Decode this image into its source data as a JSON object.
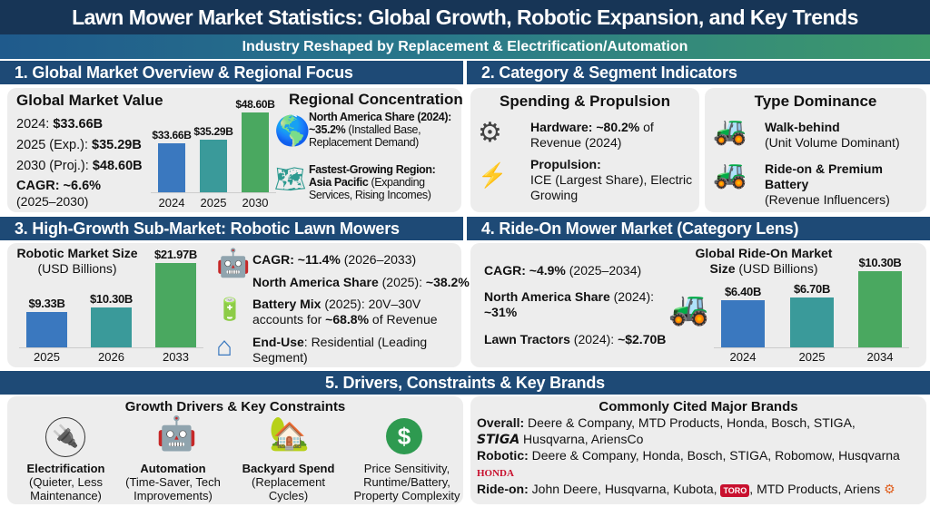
{
  "title": "Lawn Mower Market Statistics: Global Growth, Robotic Expansion, and Key Trends",
  "subtitle": "Industry Reshaped by Replacement & Electrification/Automation",
  "s1": {
    "header": "1. Global Market Overview & Regional Focus",
    "gmv_title": "Global Market Value",
    "rows": [
      {
        "label": "2024: ",
        "value": "$33.66B"
      },
      {
        "label": "2025 (Exp.): ",
        "value": "$35.29B"
      },
      {
        "label": "2030 (Proj.): ",
        "value": "$48.60B"
      }
    ],
    "cagr": "CAGR: ~6.6%",
    "cagr_period": "(2025–2030)",
    "regional_title": "Regional Concentration",
    "na_bold": "North America Share (2024):",
    "na_bold2": "~35.2%",
    "na_rest": " (Installed Base, Replacement Demand)",
    "ap_bold": "Fastest-Growing Region:",
    "ap_bold2": "Asia Pacific",
    "ap_rest": " (Expanding Services, Rising Incomes)"
  },
  "s2": {
    "header": "2. Category & Segment Indicators",
    "sp_title": "Spending & Propulsion",
    "hw_bold": "Hardware: ~80.2%",
    "hw_rest": " of Revenue (2024)",
    "prop_bold": "Propulsion:",
    "prop_rest": "ICE (Largest Share), Electric Growing",
    "td_title": "Type Dominance",
    "wb_bold": "Walk-behind",
    "wb_rest": "(Unit Volume Dominant)",
    "ro_bold": "Ride-on & Premium Battery",
    "ro_rest": "(Revenue Influencers)"
  },
  "s3": {
    "header": "3. High-Growth Sub-Market: Robotic Lawn Mowers",
    "chart_title": "Robotic Market Size",
    "chart_sub": "(USD Billions)",
    "cagr_bold": "CAGR: ~11.4%",
    "cagr_rest": " (2026–2033)",
    "na_bold": "North America Share",
    "na_rest": " (2025): ",
    "na_val": "~38.2%",
    "bat_bold": "Battery Mix",
    "bat_rest": " (2025): 20V–30V accounts for ",
    "bat_val": "~68.8%",
    "bat_end": " of Revenue",
    "eu_bold": "End-Use",
    "eu_rest": ": Residential (Leading Segment)"
  },
  "s4": {
    "header": "4. Ride-On Mower Market (Category Lens)",
    "cagr_bold": "CAGR: ~4.9%",
    "cagr_rest": " (2025–2034)",
    "na_bold": "North America Share",
    "na_rest": " (2024):",
    "na_val": "~31%",
    "lt_bold": "Lawn Tractors",
    "lt_rest": " (2024): ",
    "lt_val": "~$2.70B",
    "chart_title": "Global Ride-On Market",
    "chart_title2": "Size",
    "chart_sub": " (USD Billions)"
  },
  "s5": {
    "header": "5. Drivers, Constraints & Key Brands",
    "drivers_title": "Growth Drivers & Key Constraints",
    "drivers": [
      {
        "bold": "Electrification",
        "rest": "(Quieter, Less Maintenance)",
        "icon": "plug-icon"
      },
      {
        "bold": "Automation",
        "rest": "(Time-Saver, Tech Improvements)",
        "icon": "robot-clock-icon"
      },
      {
        "bold": "Backyard Spend",
        "rest": "(Replacement Cycles)",
        "icon": "house-yard-icon"
      },
      {
        "bold": "",
        "rest": "Price Sensitivity, Runtime/Battery, Property Complexity",
        "icon": "dollar-question-icon"
      }
    ],
    "brands_title": "Commonly Cited Major Brands",
    "overall_label": "Overall:",
    "overall": " Deere & Company, MTD Products, Honda, Bosch, STIGA,",
    "overall2": " Husqvarna, AriensCo",
    "robotic_label": "Robotic:",
    "robotic": " Deere & Company, Honda, Bosch, STIGA, Robomow, Husqvarna",
    "rideon_label": "Ride-on:",
    "rideon": " John Deere, Husqvarna, Kubota, ",
    "rideon2": ", MTD Products, Ariens",
    "logo_stiga": "STIGA",
    "logo_honda": "HONDA",
    "logo_toro": "TORO"
  },
  "colors": {
    "navy": "#173556",
    "header": "#1e4a76",
    "bar1": "#3a78bf",
    "bar2": "#3a9a9a",
    "bar3": "#4aa860",
    "panel": "#ededed"
  },
  "chart_data": [
    {
      "type": "bar",
      "title": "Global Market Value",
      "categories": [
        "2024",
        "2025",
        "2030"
      ],
      "values": [
        33.66,
        35.29,
        48.6
      ],
      "labels": [
        "$33.66B",
        "$35.29B",
        "$48.60B"
      ]
    },
    {
      "type": "bar",
      "title": "Robotic Market Size",
      "ylabel": "(USD Billions)",
      "categories": [
        "2025",
        "2026",
        "2033"
      ],
      "values": [
        9.33,
        10.3,
        21.97
      ],
      "labels": [
        "$9.33B",
        "$10.30B",
        "$21.97B"
      ]
    },
    {
      "type": "bar",
      "title": "Global Ride-On Market Size (USD Billions)",
      "categories": [
        "2024",
        "2025",
        "2034"
      ],
      "values": [
        6.4,
        6.7,
        10.3
      ],
      "labels": [
        "$6.40B",
        "$6.70B",
        "$10.30B"
      ]
    }
  ]
}
